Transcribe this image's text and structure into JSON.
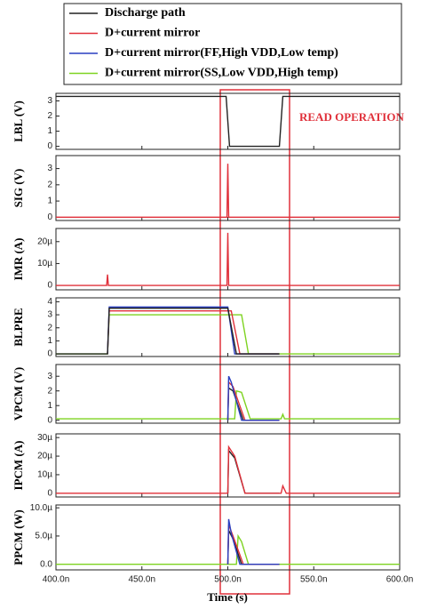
{
  "legend": [
    {
      "name": "Discharge path",
      "color": "#222222"
    },
    {
      "name": "D+current mirror",
      "color": "#e0303a"
    },
    {
      "name": "D+current mirror(FF,High VDD,Low temp)",
      "color": "#2a3fc0"
    },
    {
      "name": "D+current mirror(SS,Low VDD,High temp)",
      "color": "#7ed321"
    }
  ],
  "annotation": "READ OPERATION",
  "x_label": "Time (s)",
  "xlim": [
    4e-07,
    6e-07
  ],
  "xticks": [
    {
      "value": 4e-07,
      "label": "400.0n"
    },
    {
      "value": 4.5e-07,
      "label": "450.0n"
    },
    {
      "value": 5e-07,
      "label": "500.0n"
    },
    {
      "value": 5.5e-07,
      "label": "550.0n"
    },
    {
      "value": 6e-07,
      "label": "600.0n"
    }
  ],
  "chart_data": [
    {
      "type": "line",
      "y_label": "LBL (V)",
      "ylim": [
        -0.2,
        3.5
      ],
      "yticks": [
        0,
        1,
        2,
        3
      ],
      "series": [
        {
          "color": "#222222",
          "x": [
            4e-07,
            4.99e-07,
            5.01e-07,
            5.3e-07,
            5.32e-07,
            6e-07
          ],
          "values": [
            3.3,
            3.3,
            0,
            0,
            3.3,
            3.3
          ]
        }
      ]
    },
    {
      "type": "line",
      "y_label": "SIG (V)",
      "ylim": [
        -0.2,
        3.8
      ],
      "yticks": [
        0,
        1,
        2,
        3
      ],
      "series": [
        {
          "color": "#e0303a",
          "x": [
            4e-07,
            4.995e-07,
            5e-07,
            5.005e-07,
            6e-07
          ],
          "values": [
            0,
            0,
            3.3,
            0,
            0
          ]
        }
      ]
    },
    {
      "type": "line",
      "y_label": "IMR (A)",
      "ylim": [
        -2e-06,
        2.6e-05
      ],
      "yticks": [
        0,
        {
          "value": 1e-05,
          "label": "10µ"
        },
        {
          "value": 2e-05,
          "label": "20µ"
        }
      ],
      "series": [
        {
          "color": "#e0303a",
          "x": [
            4e-07,
            4.295e-07,
            4.3e-07,
            4.305e-07,
            4.995e-07,
            5e-07,
            5.005e-07,
            6e-07
          ],
          "values": [
            0,
            0,
            5e-06,
            0,
            0,
            2.4e-05,
            0,
            0
          ]
        }
      ]
    },
    {
      "type": "line",
      "y_label": "BLPRE",
      "ylim": [
        -0.2,
        4.3
      ],
      "yticks": [
        0,
        1,
        2,
        3,
        4
      ],
      "series": [
        {
          "color": "#7ed321",
          "x": [
            4e-07,
            4.3e-07,
            4.31e-07,
            5.08e-07,
            5.12e-07,
            6e-07
          ],
          "values": [
            0,
            0,
            3.0,
            3.0,
            0,
            0
          ]
        },
        {
          "color": "#e0303a",
          "x": [
            4.3e-07,
            4.31e-07,
            5.02e-07,
            5.07e-07,
            5.3e-07
          ],
          "values": [
            0,
            3.3,
            3.3,
            0,
            0
          ]
        },
        {
          "color": "#2a3fc0",
          "x": [
            4.3e-07,
            4.31e-07,
            5e-07,
            5.04e-07,
            5.3e-07
          ],
          "values": [
            0,
            3.6,
            3.6,
            0,
            0
          ]
        },
        {
          "color": "#222222",
          "x": [
            4e-07,
            4.3e-07,
            4.31e-07,
            5e-07,
            5.05e-07,
            5.3e-07
          ],
          "values": [
            0,
            0,
            3.5,
            3.5,
            0,
            0
          ]
        }
      ]
    },
    {
      "type": "line",
      "y_label": "VPCM (V)",
      "ylim": [
        -0.2,
        3.8
      ],
      "yticks": [
        0,
        1,
        2,
        3
      ],
      "series": [
        {
          "color": "#7ed321",
          "x": [
            4e-07,
            5.04e-07,
            5.05e-07,
            5.08e-07,
            5.13e-07,
            5.31e-07,
            5.32e-07,
            5.33e-07,
            6e-07
          ],
          "values": [
            0.1,
            0.1,
            2.0,
            1.9,
            0.1,
            0.1,
            0.4,
            0.1,
            0.1
          ]
        },
        {
          "color": "#222222",
          "x": [
            5e-07,
            5.005e-07,
            5.03e-07,
            5.09e-07,
            5.3e-07
          ],
          "values": [
            0,
            2.2,
            2.0,
            0,
            0
          ]
        },
        {
          "color": "#e0303a",
          "x": [
            5e-07,
            5.005e-07,
            5.03e-07,
            5.1e-07,
            5.3e-07
          ],
          "values": [
            0,
            2.6,
            2.3,
            0,
            0
          ]
        },
        {
          "color": "#2a3fc0",
          "x": [
            5e-07,
            5.005e-07,
            5.02e-07,
            5.08e-07,
            5.3e-07
          ],
          "values": [
            0,
            3.0,
            2.6,
            0,
            0
          ]
        }
      ]
    },
    {
      "type": "line",
      "y_label": "IPCM (A)",
      "ylim": [
        -2e-06,
        3.2e-05
      ],
      "yticks": [
        0,
        {
          "value": 1e-05,
          "label": "10µ"
        },
        {
          "value": 2e-05,
          "label": "20µ"
        },
        {
          "value": 3e-05,
          "label": "30µ"
        }
      ],
      "series": [
        {
          "color": "#222222",
          "x": [
            5e-07,
            5.005e-07,
            5.04e-07,
            5.1e-07,
            5.3e-07
          ],
          "values": [
            0,
            2.3e-05,
            1.9e-05,
            0,
            0
          ]
        },
        {
          "color": "#e0303a",
          "x": [
            4e-07,
            5e-07,
            5.005e-07,
            5.04e-07,
            5.1e-07,
            5.31e-07,
            5.32e-07,
            5.34e-07,
            6e-07
          ],
          "values": [
            0,
            0,
            2.5e-05,
            2e-05,
            0,
            0,
            4e-06,
            0,
            0
          ]
        }
      ]
    },
    {
      "type": "line",
      "y_label": "PPCM (W)",
      "ylim": [
        -1e-06,
        1.05e-05
      ],
      "yticks": [
        {
          "value": 0,
          "label": "0.0"
        },
        {
          "value": 5e-06,
          "label": "5.0µ"
        },
        {
          "value": 1e-05,
          "label": "10.0µ"
        }
      ],
      "series": [
        {
          "color": "#7ed321",
          "x": [
            4e-07,
            5.05e-07,
            5.06e-07,
            5.08e-07,
            5.12e-07,
            6e-07
          ],
          "values": [
            0,
            0,
            5e-06,
            4e-06,
            0,
            0
          ]
        },
        {
          "color": "#222222",
          "x": [
            5e-07,
            5.005e-07,
            5.03e-07,
            5.08e-07,
            5.3e-07
          ],
          "values": [
            0,
            6e-06,
            4.5e-06,
            0,
            0
          ]
        },
        {
          "color": "#e0303a",
          "x": [
            5e-07,
            5.005e-07,
            5.03e-07,
            5.09e-07,
            5.3e-07
          ],
          "values": [
            0,
            7e-06,
            5e-06,
            0,
            0
          ]
        },
        {
          "color": "#2a3fc0",
          "x": [
            5e-07,
            5.005e-07,
            5.02e-07,
            5.07e-07,
            5.3e-07
          ],
          "values": [
            0,
            8e-06,
            5.5e-06,
            0,
            0
          ]
        }
      ]
    }
  ]
}
